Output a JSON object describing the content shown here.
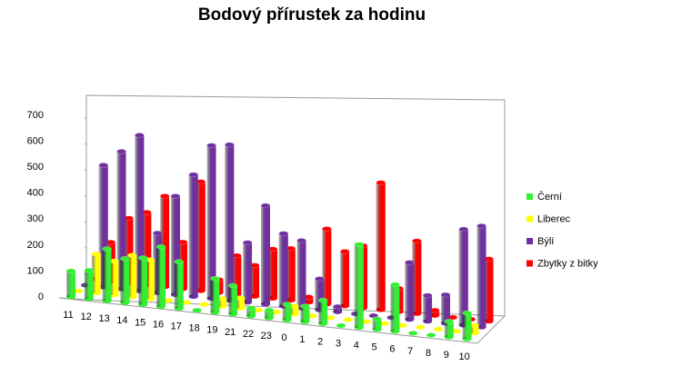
{
  "chart_data": {
    "type": "bar3d",
    "title": "Bodový přírustek za hodinu",
    "categories": [
      "11",
      "12",
      "13",
      "14",
      "15",
      "16",
      "17",
      "18",
      "19",
      "21",
      "22",
      "23",
      "0",
      "1",
      "2",
      "3",
      "4",
      "5",
      "6",
      "7",
      "8",
      "9",
      "10"
    ],
    "series": [
      {
        "name": "Černí",
        "color": "#33ee33",
        "values": [
          100,
          110,
          200,
          170,
          180,
          230,
          180,
          0,
          130,
          110,
          30,
          30,
          60,
          60,
          90,
          0,
          320,
          40,
          180,
          0,
          0,
          60,
          100
        ]
      },
      {
        "name": "Liberec",
        "color": "#ffff00",
        "values": [
          0,
          150,
          130,
          160,
          150,
          0,
          0,
          0,
          30,
          40,
          0,
          0,
          30,
          0,
          0,
          0,
          0,
          0,
          0,
          0,
          0,
          0,
          30
        ]
      },
      {
        "name": "Býlí",
        "color": "#7030a0",
        "values": [
          0,
          470,
          530,
          600,
          230,
          380,
          470,
          590,
          600,
          230,
          380,
          280,
          260,
          120,
          20,
          0,
          0,
          0,
          220,
          100,
          110,
          370,
          390
        ]
      },
      {
        "name": "Zbytky z bitky",
        "color": "#ff0000",
        "values": [
          0,
          150,
          250,
          280,
          350,
          180,
          420,
          50,
          150,
          120,
          190,
          200,
          20,
          290,
          210,
          240,
          490,
          90,
          280,
          20,
          0,
          0,
          240
        ]
      }
    ],
    "ylim": [
      0,
      700
    ],
    "yticks": [
      0,
      100,
      200,
      300,
      400,
      500,
      600,
      700
    ],
    "legend": "right"
  }
}
